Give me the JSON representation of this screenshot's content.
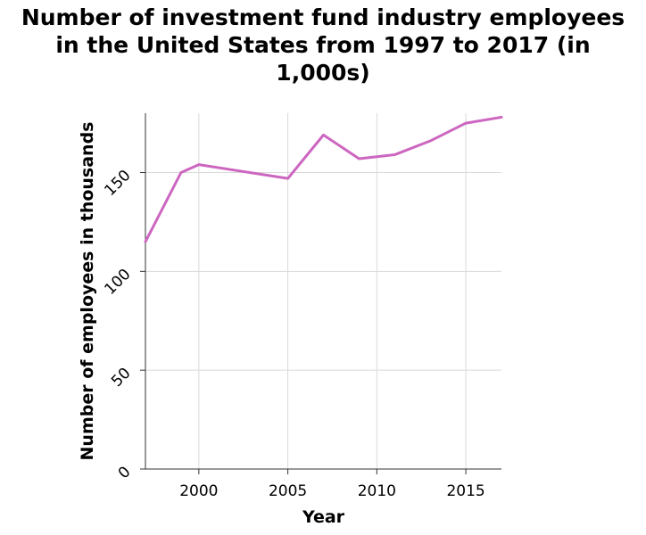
{
  "chart_data": {
    "type": "line",
    "title_lines": [
      "Number of investment fund industry employees",
      "in the United States from 1997 to 2017 (in",
      "1,000s)"
    ],
    "xlabel": "Year",
    "ylabel": "Number of employees in thousands",
    "xlim": [
      1997,
      2017
    ],
    "ylim": [
      0,
      180
    ],
    "xticks": [
      2000,
      2005,
      2010,
      2015
    ],
    "yticks": [
      0,
      50,
      100,
      150
    ],
    "grid": true,
    "series": [
      {
        "color": "#cc66c0",
        "x": [
          1997,
          1999,
          2000,
          2005,
          2007,
          2009,
          2011,
          2013,
          2015,
          2017
        ],
        "y": [
          115,
          150,
          154,
          147,
          169,
          157,
          159,
          166,
          175,
          178
        ]
      }
    ]
  }
}
